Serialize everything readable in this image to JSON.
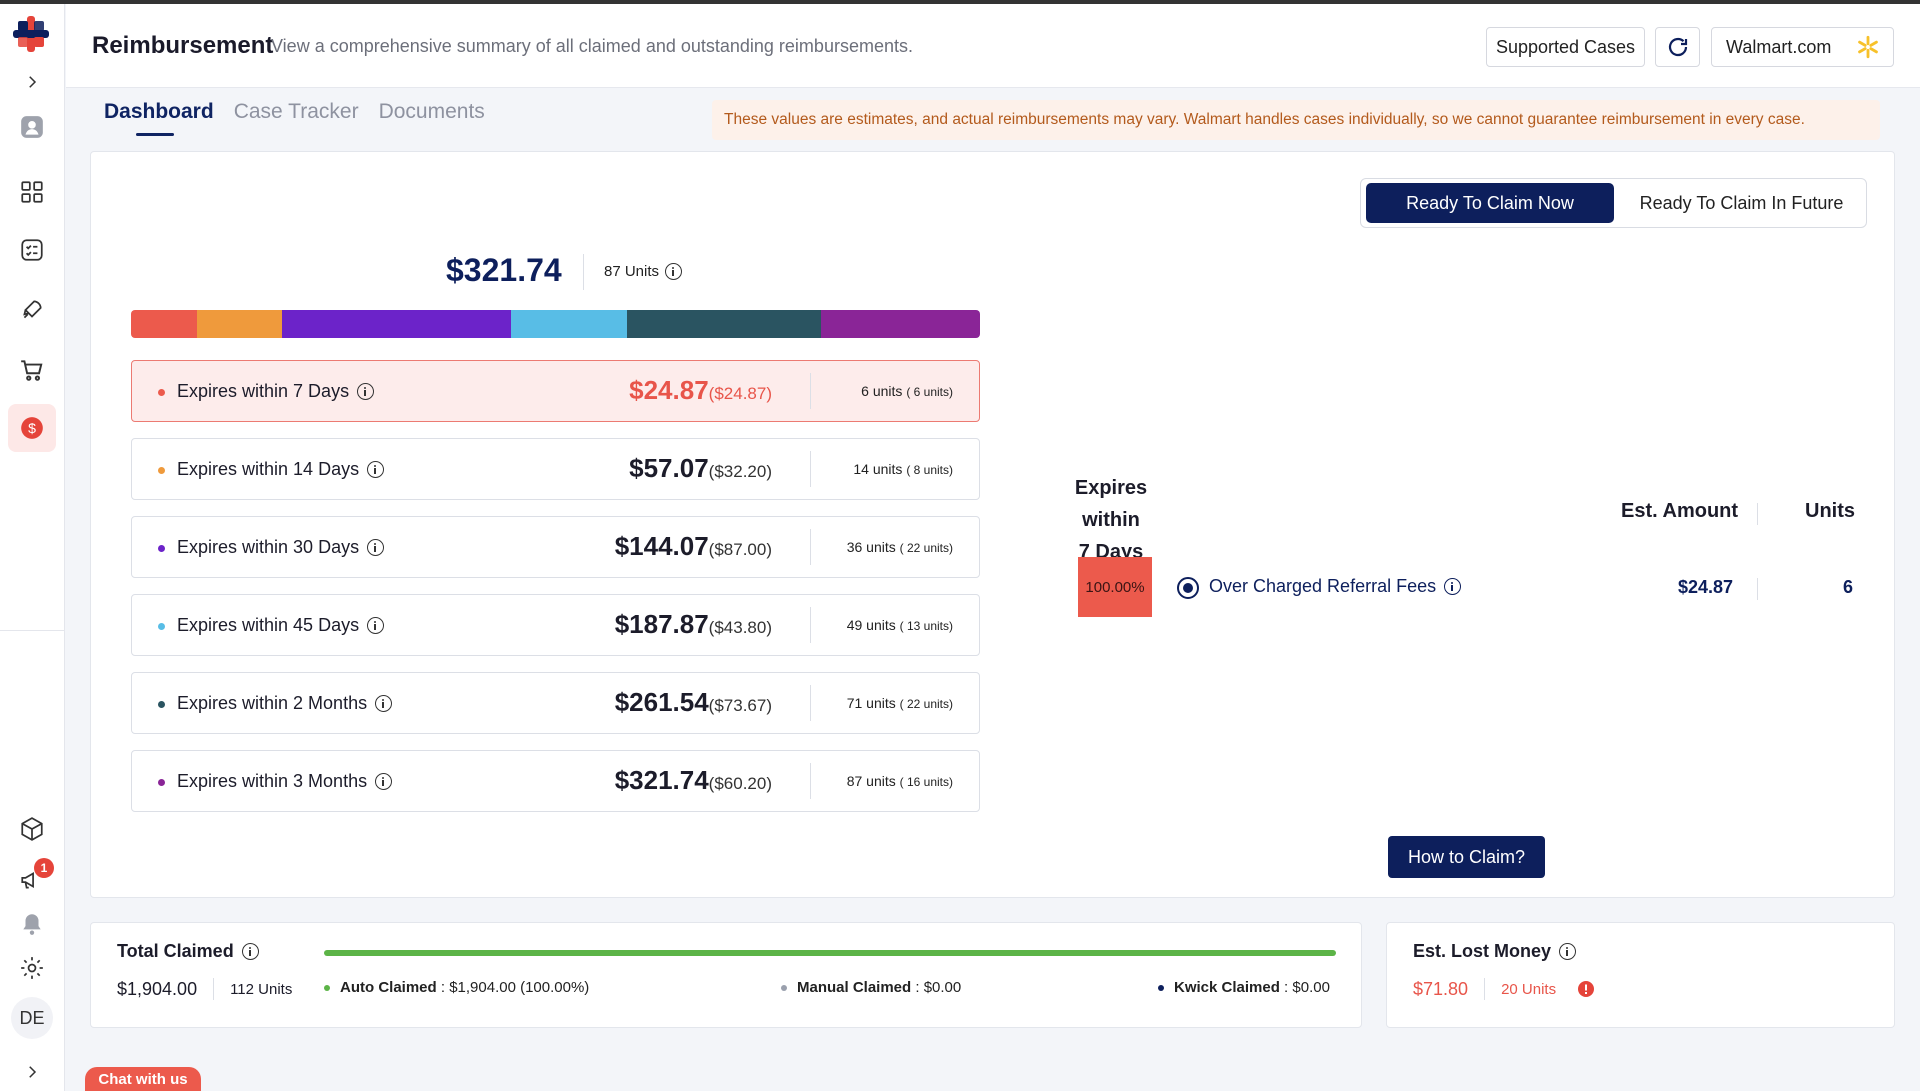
{
  "header": {
    "title": "Reimbursement",
    "subtitle": "View a comprehensive summary of all claimed and outstanding reimbursements.",
    "supported_cases_label": "Supported Cases",
    "store_label": "Walmart.com"
  },
  "sidebar": {
    "avatar_initials": "DE",
    "notification_count": "1"
  },
  "tabs": [
    {
      "label": "Dashboard",
      "active": true
    },
    {
      "label": "Case Tracker",
      "active": false
    },
    {
      "label": "Documents",
      "active": false
    }
  ],
  "notice": "These values are estimates, and actual reimbursements may vary. Walmart handles cases individually, so we cannot guarantee reimbursement in every case.",
  "claim_toggle": {
    "now_label": "Ready To Claim Now",
    "future_label": "Ready To Claim In Future",
    "selected": "now"
  },
  "summary": {
    "total_amount": "$321.74",
    "total_units": "87 Units"
  },
  "stack_segments": [
    {
      "color": "#ec5a4c",
      "value": 24.87
    },
    {
      "color": "#ef9a3c",
      "value": 32.2
    },
    {
      "color": "#6c23c9",
      "value": 87.0
    },
    {
      "color": "#58bde6",
      "value": 43.8
    },
    {
      "color": "#2a5461",
      "value": 73.67
    },
    {
      "color": "#8a2597",
      "value": 60.2
    }
  ],
  "expiry_rows": [
    {
      "label": "Expires within 7 Days",
      "amount": "$24.87",
      "sub": "($24.87)",
      "units": "6 units",
      "units_sub": "( 6 units)",
      "dot": "#ec5a4c",
      "highlight": true
    },
    {
      "label": "Expires within 14 Days",
      "amount": "$57.07",
      "sub": "($32.20)",
      "units": "14 units",
      "units_sub": "( 8 units)",
      "dot": "#ef9a3c",
      "highlight": false
    },
    {
      "label": "Expires within 30 Days",
      "amount": "$144.07",
      "sub": "($87.00)",
      "units": "36 units",
      "units_sub": "( 22 units)",
      "dot": "#6c23c9",
      "highlight": false
    },
    {
      "label": "Expires within 45 Days",
      "amount": "$187.87",
      "sub": "($43.80)",
      "units": "49 units",
      "units_sub": "( 13 units)",
      "dot": "#58bde6",
      "highlight": false
    },
    {
      "label": "Expires within 2 Months",
      "amount": "$261.54",
      "sub": "($73.67)",
      "units": "71 units",
      "units_sub": "( 22 units)",
      "dot": "#2a5461",
      "highlight": false
    },
    {
      "label": "Expires within 3 Months",
      "amount": "$321.74",
      "sub": "($60.20)",
      "units": "87 units",
      "units_sub": "( 16 units)",
      "dot": "#8a2597",
      "highlight": false
    }
  ],
  "detail": {
    "title_line1": "Expires within",
    "title_line2": "7 Days",
    "col_amount": "Est. Amount",
    "col_units": "Units",
    "percent": "100.00%",
    "reason": "Over Charged Referral Fees",
    "amount": "$24.87",
    "units": "6",
    "how_to_claim": "How to Claim?"
  },
  "total_claimed": {
    "title": "Total Claimed",
    "amount": "$1,904.00",
    "units": "112 Units",
    "progress_fraction": 1.0,
    "auto_label": "Auto Claimed",
    "auto_value": ": $1,904.00 (100.00%)",
    "manual_label": "Manual Claimed",
    "manual_value": ": $0.00",
    "kwick_label": "Kwick Claimed",
    "kwick_value": ": $0.00"
  },
  "lost_money": {
    "title": "Est. Lost Money",
    "amount": "$71.80",
    "units": "20 Units"
  },
  "chat_label": "Chat with us",
  "colors": {
    "navy": "#0d1f5c",
    "red": "#ec5a4c",
    "green": "#5cb447"
  }
}
